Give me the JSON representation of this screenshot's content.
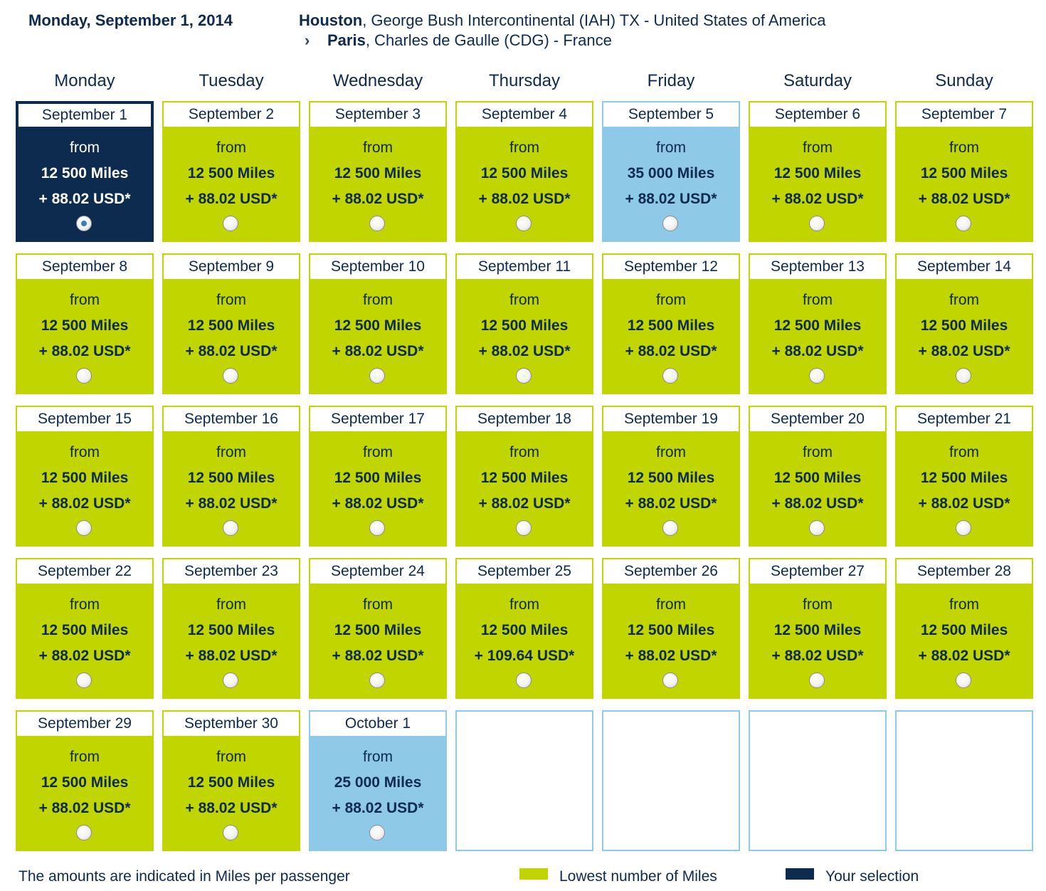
{
  "header": {
    "date": "Monday, September 1, 2014",
    "origin_city": "Houston",
    "origin_detail": ", George Bush Intercontinental (IAH) TX - United States of America",
    "dest_city": "Paris",
    "dest_detail": ", Charles de Gaulle (CDG) - France"
  },
  "weekdays": [
    "Monday",
    "Tuesday",
    "Wednesday",
    "Thursday",
    "Friday",
    "Saturday",
    "Sunday"
  ],
  "from_label": "from",
  "colors": {
    "lowest": "#c1d500",
    "higher": "#8ecae8",
    "selected": "#0d2a4f"
  },
  "days": [
    {
      "date": "September 1",
      "miles": "12 500 Miles",
      "usd": "+ 88.02 USD*",
      "state": "selected"
    },
    {
      "date": "September 2",
      "miles": "12 500 Miles",
      "usd": "+ 88.02 USD*",
      "state": "lowest"
    },
    {
      "date": "September 3",
      "miles": "12 500 Miles",
      "usd": "+ 88.02 USD*",
      "state": "lowest"
    },
    {
      "date": "September 4",
      "miles": "12 500 Miles",
      "usd": "+ 88.02 USD*",
      "state": "lowest"
    },
    {
      "date": "September 5",
      "miles": "35 000 Miles",
      "usd": "+ 88.02 USD*",
      "state": "higher"
    },
    {
      "date": "September 6",
      "miles": "12 500 Miles",
      "usd": "+ 88.02 USD*",
      "state": "lowest"
    },
    {
      "date": "September 7",
      "miles": "12 500 Miles",
      "usd": "+ 88.02 USD*",
      "state": "lowest"
    },
    {
      "date": "September 8",
      "miles": "12 500 Miles",
      "usd": "+ 88.02 USD*",
      "state": "lowest"
    },
    {
      "date": "September 9",
      "miles": "12 500 Miles",
      "usd": "+ 88.02 USD*",
      "state": "lowest"
    },
    {
      "date": "September 10",
      "miles": "12 500 Miles",
      "usd": "+ 88.02 USD*",
      "state": "lowest"
    },
    {
      "date": "September 11",
      "miles": "12 500 Miles",
      "usd": "+ 88.02 USD*",
      "state": "lowest"
    },
    {
      "date": "September 12",
      "miles": "12 500 Miles",
      "usd": "+ 88.02 USD*",
      "state": "lowest"
    },
    {
      "date": "September 13",
      "miles": "12 500 Miles",
      "usd": "+ 88.02 USD*",
      "state": "lowest"
    },
    {
      "date": "September 14",
      "miles": "12 500 Miles",
      "usd": "+ 88.02 USD*",
      "state": "lowest"
    },
    {
      "date": "September 15",
      "miles": "12 500 Miles",
      "usd": "+ 88.02 USD*",
      "state": "lowest"
    },
    {
      "date": "September 16",
      "miles": "12 500 Miles",
      "usd": "+ 88.02 USD*",
      "state": "lowest"
    },
    {
      "date": "September 17",
      "miles": "12 500 Miles",
      "usd": "+ 88.02 USD*",
      "state": "lowest"
    },
    {
      "date": "September 18",
      "miles": "12 500 Miles",
      "usd": "+ 88.02 USD*",
      "state": "lowest"
    },
    {
      "date": "September 19",
      "miles": "12 500 Miles",
      "usd": "+ 88.02 USD*",
      "state": "lowest"
    },
    {
      "date": "September 20",
      "miles": "12 500 Miles",
      "usd": "+ 88.02 USD*",
      "state": "lowest"
    },
    {
      "date": "September 21",
      "miles": "12 500 Miles",
      "usd": "+ 88.02 USD*",
      "state": "lowest"
    },
    {
      "date": "September 22",
      "miles": "12 500 Miles",
      "usd": "+ 88.02 USD*",
      "state": "lowest"
    },
    {
      "date": "September 23",
      "miles": "12 500 Miles",
      "usd": "+ 88.02 USD*",
      "state": "lowest"
    },
    {
      "date": "September 24",
      "miles": "12 500 Miles",
      "usd": "+ 88.02 USD*",
      "state": "lowest"
    },
    {
      "date": "September 25",
      "miles": "12 500 Miles",
      "usd": "+ 109.64 USD*",
      "state": "lowest"
    },
    {
      "date": "September 26",
      "miles": "12 500 Miles",
      "usd": "+ 88.02 USD*",
      "state": "lowest"
    },
    {
      "date": "September 27",
      "miles": "12 500 Miles",
      "usd": "+ 88.02 USD*",
      "state": "lowest"
    },
    {
      "date": "September 28",
      "miles": "12 500 Miles",
      "usd": "+ 88.02 USD*",
      "state": "lowest"
    },
    {
      "date": "September 29",
      "miles": "12 500 Miles",
      "usd": "+ 88.02 USD*",
      "state": "lowest"
    },
    {
      "date": "September 30",
      "miles": "12 500 Miles",
      "usd": "+ 88.02 USD*",
      "state": "lowest"
    },
    {
      "date": "October 1",
      "miles": "25 000 Miles",
      "usd": "+ 88.02 USD*",
      "state": "higher"
    },
    {
      "state": "empty"
    },
    {
      "state": "empty"
    },
    {
      "state": "empty"
    },
    {
      "state": "empty"
    }
  ],
  "footer": {
    "note": "The amounts are indicated in Miles per passenger",
    "legend_lowest": "Lowest number of Miles",
    "legend_selection": "Your selection"
  }
}
